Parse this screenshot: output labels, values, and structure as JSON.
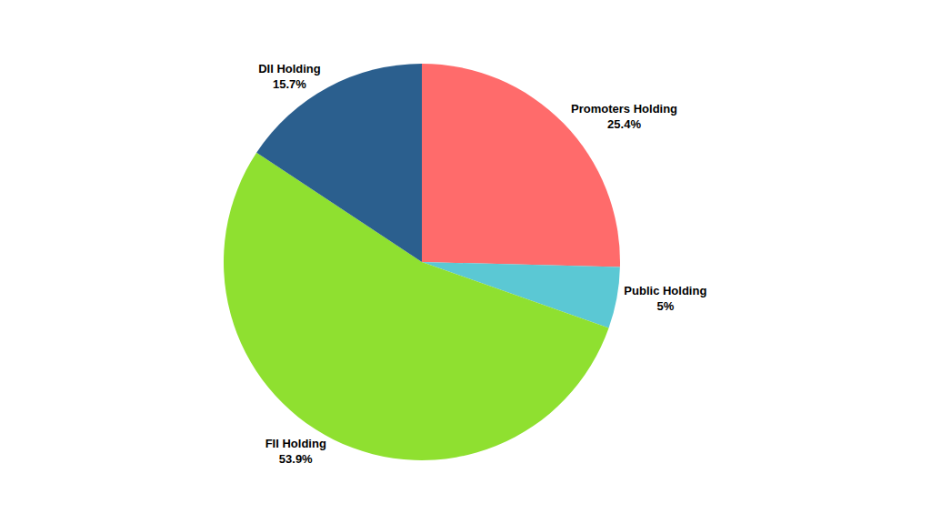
{
  "chart_data": {
    "type": "pie",
    "categories": [
      "Promoters Holding",
      "Public Holding",
      "FII Holding",
      "DII Holding"
    ],
    "values": [
      25.4,
      5.0,
      53.9,
      15.7
    ],
    "value_labels": [
      "25.4%",
      "5%",
      "53.9%",
      "15.7%"
    ],
    "colors": [
      "#FF6B6B",
      "#5BC8D4",
      "#8FE030",
      "#2B5F8E"
    ],
    "legend": false
  }
}
